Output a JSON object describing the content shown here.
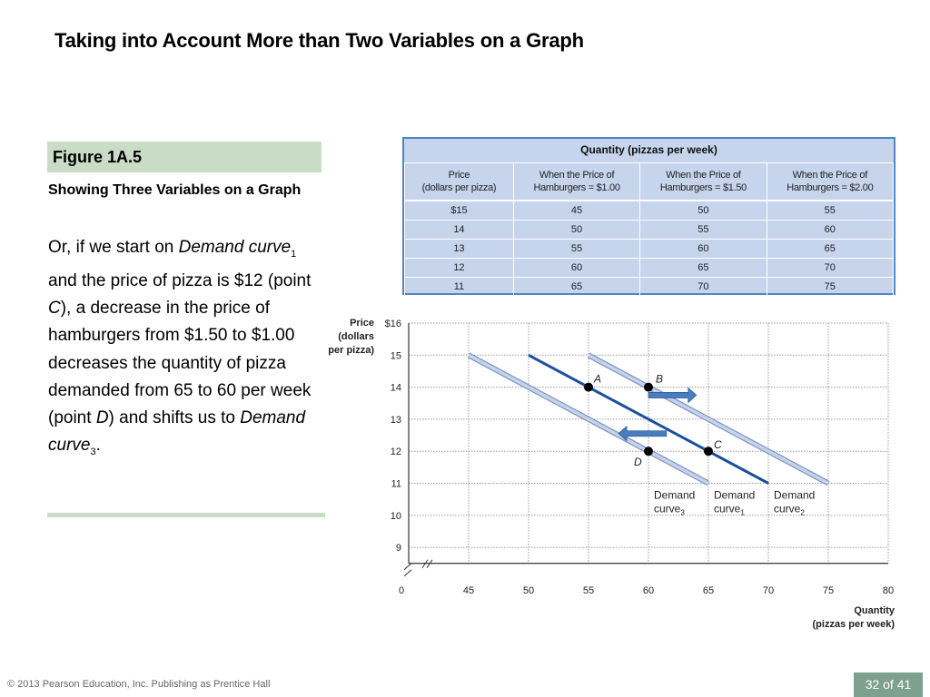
{
  "slide": {
    "title": "Taking into Account More than Two Variables on a Graph",
    "figure_label": "Figure 1A.5",
    "figure_subtitle": "Showing Three Variables on a Graph",
    "body": {
      "t1": "Or, if we start on ",
      "t2": "Demand curve",
      "t3": "1",
      "t4": " and the price of pizza is $12 (point ",
      "t5": "C",
      "t6": "), a decrease in the price of hamburgers from $1.50 to $1.00 decreases the quantity of pizza demanded from 65 to 60 per week (point ",
      "t7": "D",
      "t8": ") and shifts us to ",
      "t9": "Demand curve",
      "t10": "3",
      "t11": "."
    },
    "footer": "© 2013 Pearson Education, Inc. Publishing as Prentice Hall",
    "page": "32 of 41"
  },
  "table": {
    "title": "Quantity (pizzas per week)",
    "headers": [
      [
        "Price",
        "(dollars per pizza)"
      ],
      [
        "When the Price of",
        "Hamburgers = $1.00"
      ],
      [
        "When the Price of",
        "Hamburgers = $1.50"
      ],
      [
        "When the Price of",
        "Hamburgers = $2.00"
      ]
    ],
    "rows": [
      [
        "$15",
        "45",
        "50",
        "55"
      ],
      [
        "14",
        "50",
        "55",
        "60"
      ],
      [
        "13",
        "55",
        "60",
        "65"
      ],
      [
        "12",
        "60",
        "65",
        "70"
      ],
      [
        "11",
        "65",
        "70",
        "75"
      ]
    ]
  },
  "chart_data": {
    "type": "line",
    "ylabel": [
      "Price",
      "(dollars",
      "per pizza)"
    ],
    "xlabel": [
      "Quantity",
      "(pizzas per week)"
    ],
    "xlim": [
      40,
      80
    ],
    "ylim": [
      8.5,
      16
    ],
    "x_ticks": [
      "0",
      "45",
      "50",
      "55",
      "60",
      "65",
      "70",
      "75",
      "80"
    ],
    "y_ticks": [
      "$16",
      "15",
      "14",
      "13",
      "12",
      "11",
      "10",
      "9"
    ],
    "grid": true,
    "series": [
      {
        "name": "Demand curve 3",
        "label": "Demand",
        "label2": "curve",
        "sub": "3",
        "color": "#a3b4d6",
        "points": [
          [
            45,
            15
          ],
          [
            50,
            14
          ],
          [
            55,
            13
          ],
          [
            60,
            12
          ],
          [
            65,
            11
          ]
        ]
      },
      {
        "name": "Demand curve 1",
        "label": "Demand",
        "label2": "curve",
        "sub": "1",
        "color": "#1a4f9c",
        "points": [
          [
            50,
            15
          ],
          [
            55,
            14
          ],
          [
            60,
            13
          ],
          [
            65,
            12
          ],
          [
            70,
            11
          ]
        ]
      },
      {
        "name": "Demand curve 2",
        "label": "Demand",
        "label2": "curve",
        "sub": "2",
        "color": "#a3b4d6",
        "points": [
          [
            55,
            15
          ],
          [
            60,
            14
          ],
          [
            65,
            13
          ],
          [
            70,
            12
          ],
          [
            75,
            11
          ]
        ]
      }
    ],
    "points": [
      {
        "label": "A",
        "x": 55,
        "y": 14
      },
      {
        "label": "B",
        "x": 60,
        "y": 14
      },
      {
        "label": "C",
        "x": 65,
        "y": 12
      },
      {
        "label": "D",
        "x": 60,
        "y": 12
      }
    ],
    "arrows": [
      {
        "from": [
          60,
          13.75
        ],
        "to": [
          64,
          13.75
        ],
        "direction": "right"
      },
      {
        "from": [
          61.5,
          12.55
        ],
        "to": [
          57.5,
          12.55
        ],
        "direction": "left"
      }
    ],
    "arrow_color": "#4a7cc0"
  }
}
